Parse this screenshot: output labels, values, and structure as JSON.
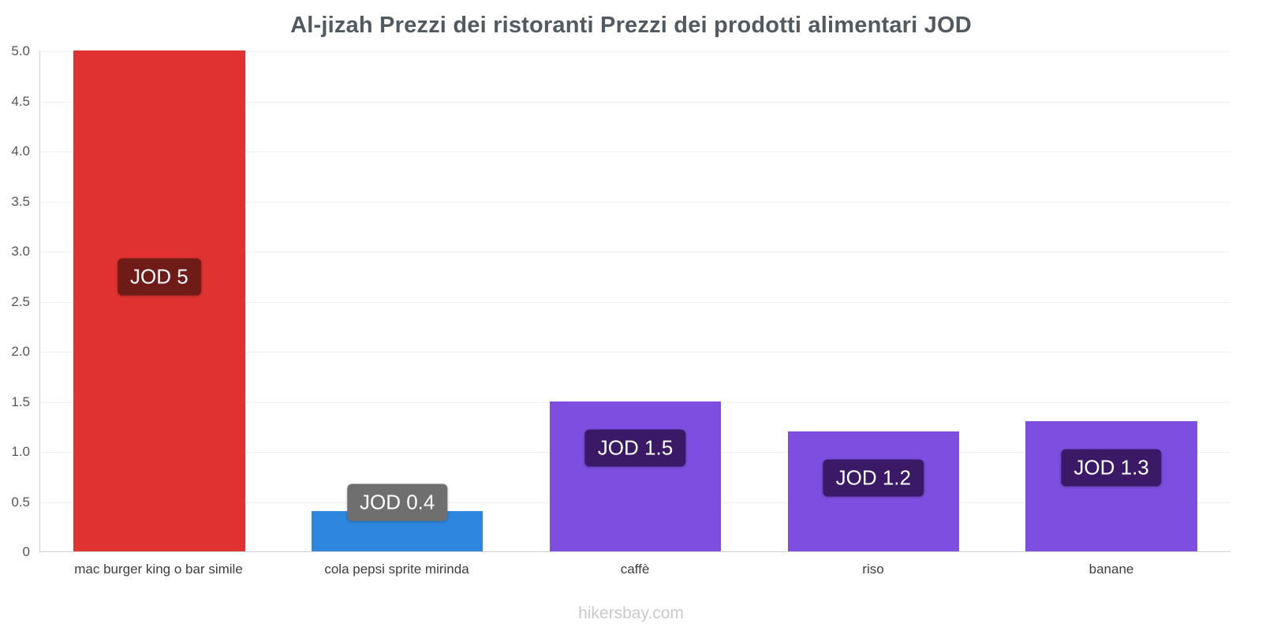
{
  "chart_data": {
    "type": "bar",
    "title": "Al-jizah Prezzi dei ristoranti Prezzi dei prodotti alimentari JOD",
    "currency": "JOD",
    "categories": [
      "mac burger king o bar simile",
      "cola pepsi sprite mirinda",
      "caffè",
      "riso",
      "banane"
    ],
    "values": [
      5,
      0.4,
      1.5,
      1.2,
      1.3
    ],
    "value_labels": [
      "JOD 5",
      "JOD 0.4",
      "JOD 1.5",
      "JOD 1.2",
      "JOD 1.3"
    ],
    "bar_colors": [
      "#e03231",
      "#2e86de",
      "#7d4ee0",
      "#7d4ee0",
      "#7d4ee0"
    ],
    "badge_colors": [
      "#6f1b17",
      "#6f6f6f",
      "#3a1a66",
      "#3a1a66",
      "#3a1a66"
    ],
    "ylim": [
      0,
      5
    ],
    "yticks": [
      {
        "value": 5,
        "label": "5.0"
      },
      {
        "value": 4.5,
        "label": "4.5"
      },
      {
        "value": 4,
        "label": "4.0"
      },
      {
        "value": 3.5,
        "label": "3.5"
      },
      {
        "value": 3,
        "label": "3.0"
      },
      {
        "value": 2.5,
        "label": "2.5"
      },
      {
        "value": 2,
        "label": "2.0"
      },
      {
        "value": 1.5,
        "label": "1.5"
      },
      {
        "value": 1,
        "label": "1.0"
      },
      {
        "value": 0.5,
        "label": "0.5"
      },
      {
        "value": 0,
        "label": "0"
      }
    ],
    "grid": true,
    "legend": false,
    "footer": "hikersbay.com"
  }
}
